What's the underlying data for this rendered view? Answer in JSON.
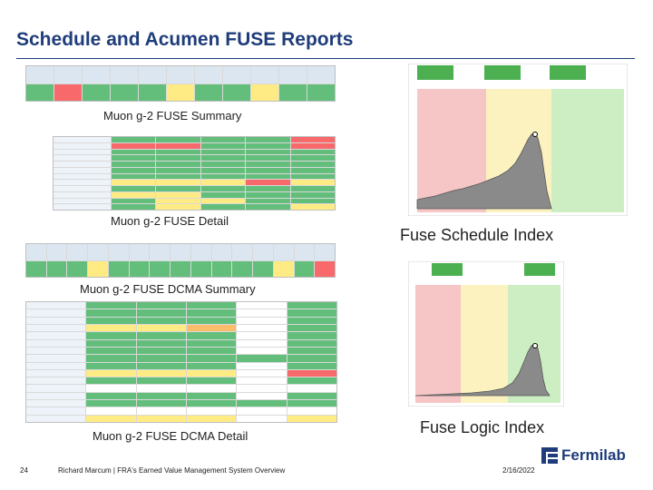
{
  "slide": {
    "title": "Schedule and Acumen FUSE Reports",
    "page_number": "24",
    "footer_text": "Richard Marcum | FRA's Earned Value Management System Overview",
    "date": "2/16/2022",
    "logo_text": "Fermilab",
    "logo_icon": "fermilab-logo-icon"
  },
  "captions": {
    "fuse_summary": "Muon g-2 FUSE Summary",
    "fuse_detail": "Muon g-2 FUSE Detail",
    "dcma_summary": "Muon g-2 FUSE DCMA Summary",
    "dcma_detail": "Muon g-2 FUSE DCMA Detail",
    "schedule_index": "Fuse Schedule Index",
    "logic_index": "Fuse Logic Index"
  },
  "colors": {
    "title_blue": "#1f3d7a",
    "good": "#63be7b",
    "warn": "#ffeb84",
    "bad": "#f8696b",
    "band_red": "#f6c6c6",
    "band_yellow": "#fbf2bf",
    "band_green": "#cdeec3",
    "curve_fill": "#8a8a8a"
  }
}
